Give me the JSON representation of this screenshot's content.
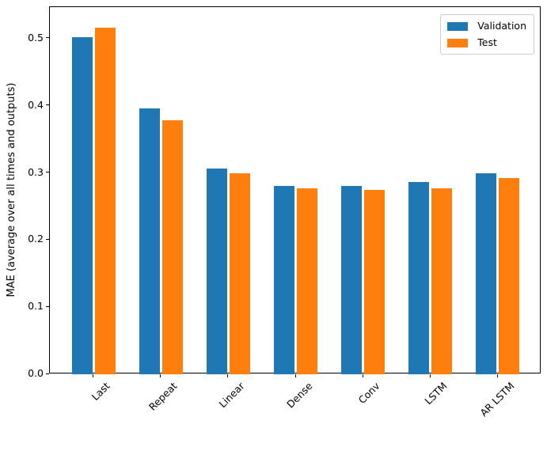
{
  "chart_data": {
    "type": "bar",
    "title": "",
    "xlabel": "",
    "ylabel": "MAE (average over all times and outputs)",
    "categories": [
      "Last",
      "Repeat",
      "Linear",
      "Dense",
      "Conv",
      "LSTM",
      "AR LSTM"
    ],
    "series": [
      {
        "name": "Validation",
        "color": "#1f77b4",
        "values": [
          0.502,
          0.396,
          0.306,
          0.281,
          0.281,
          0.287,
          0.299
        ]
      },
      {
        "name": "Test",
        "color": "#ff7f0e",
        "values": [
          0.516,
          0.378,
          0.299,
          0.277,
          0.275,
          0.277,
          0.292
        ]
      }
    ],
    "ylim": [
      0,
      0.547
    ],
    "yticks": [
      0.0,
      0.1,
      0.2,
      0.3,
      0.4,
      0.5
    ],
    "ytick_labels": [
      "0.0",
      "0.1",
      "0.2",
      "0.3",
      "0.4",
      "0.5"
    ],
    "x_tick_rotation": 45,
    "bar_width": 0.3,
    "offsets": [
      -0.17,
      0.17
    ],
    "legend_position": "upper right",
    "grid": false,
    "axis_color": "#000000",
    "legend_border_color": "#cccccc"
  }
}
